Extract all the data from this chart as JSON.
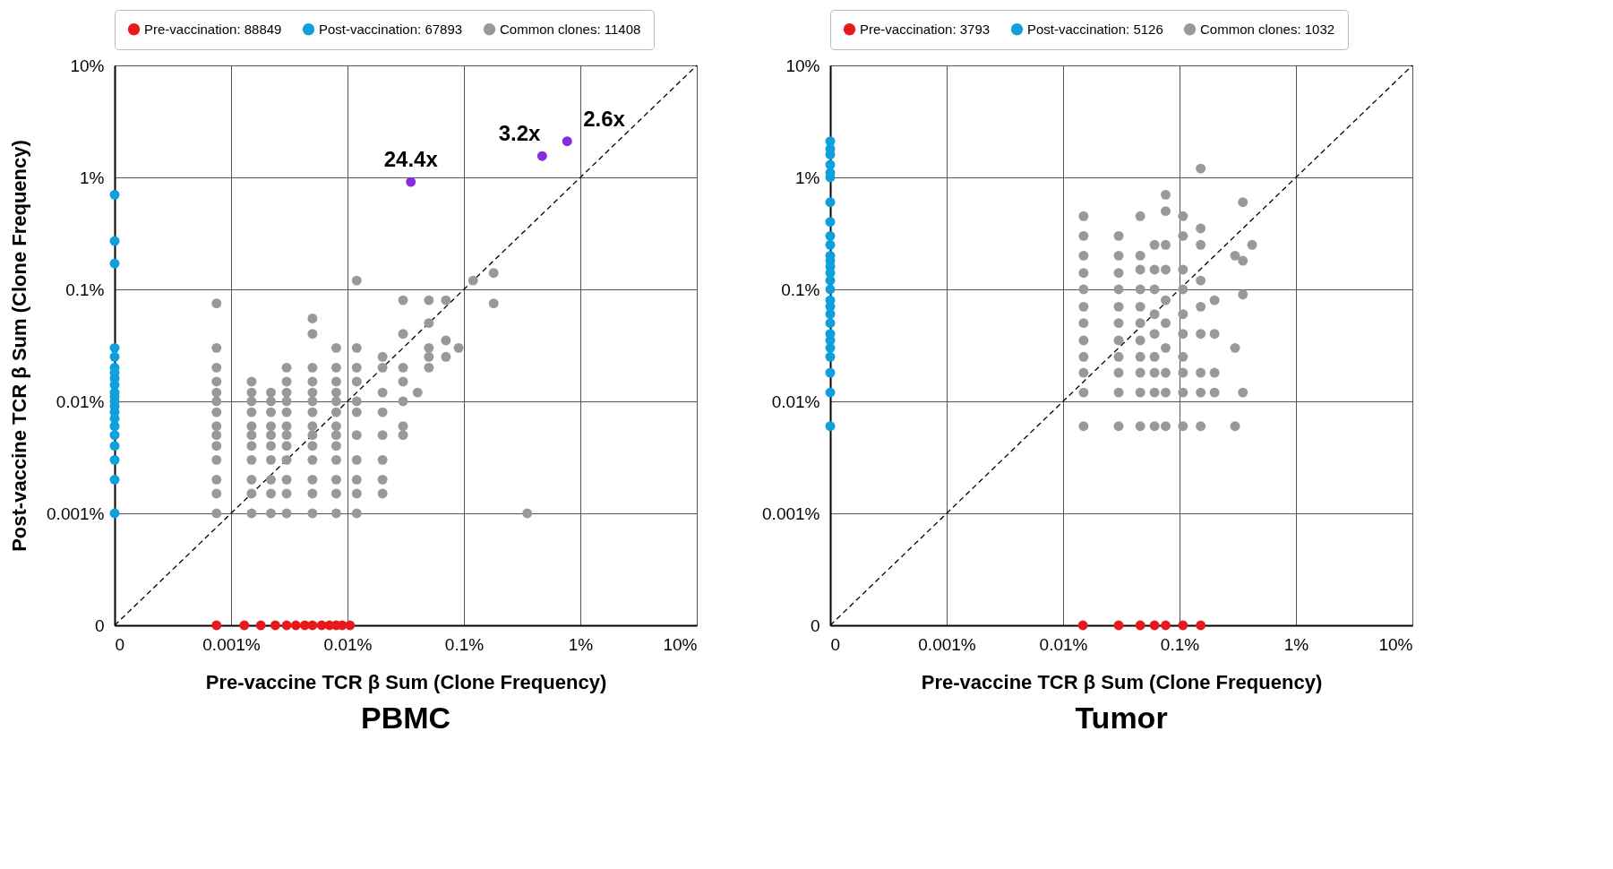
{
  "chart_data": [
    {
      "type": "scatter",
      "title": "PBMC",
      "xlabel": "Pre-vaccine TCR β Sum (Clone Frequency)",
      "ylabel": "Post-vaccine TCR β Sum (Clone Frequency)",
      "xlim": [
        0.0001,
        10
      ],
      "ylim": [
        0.0001,
        10
      ],
      "xticks": [
        {
          "value": 0.0001,
          "label": "0"
        },
        {
          "value": 0.001,
          "label": "0.001%"
        },
        {
          "value": 0.01,
          "label": "0.01%"
        },
        {
          "value": 0.1,
          "label": "0.1%"
        },
        {
          "value": 1,
          "label": "1%"
        },
        {
          "value": 10,
          "label": "10%"
        }
      ],
      "yticks": [
        {
          "value": 0.0001,
          "label": "0"
        },
        {
          "value": 0.001,
          "label": "0.001%"
        },
        {
          "value": 0.01,
          "label": "0.01%"
        },
        {
          "value": 0.1,
          "label": "0.1%"
        },
        {
          "value": 1,
          "label": "1%"
        },
        {
          "value": 10,
          "label": "10%"
        }
      ],
      "log": "xy",
      "grid": true,
      "legend": "top",
      "marker": "circle",
      "series": [
        {
          "type": "line",
          "color": "#000000",
          "line_style": "dashed",
          "marker": "none",
          "x": [
            0.0001,
            10
          ],
          "values": [
            0.0001,
            10
          ]
        },
        {
          "name": "Pre-vaccination: 88849",
          "color": "#e8191c",
          "x": [
            0.00075,
            0.0013,
            0.0018,
            0.0024,
            0.003,
            0.0036,
            0.0043,
            0.005,
            0.006,
            0.007,
            0.008,
            0.009,
            0.0105
          ],
          "values": [
            0.0001,
            0.0001,
            0.0001,
            0.0001,
            0.0001,
            0.0001,
            0.0001,
            0.0001,
            0.0001,
            0.0001,
            0.0001,
            0.0001,
            0.0001
          ]
        },
        {
          "name": "Post-vaccination: 67893",
          "color": "#0fa0dc",
          "x": [
            0.0001,
            0.0001,
            0.0001,
            0.0001,
            0.0001,
            0.0001,
            0.0001,
            0.0001,
            0.0001,
            0.0001,
            0.0001,
            0.0001,
            0.0001,
            0.0001,
            0.0001,
            0.0001,
            0.0001,
            0.0001,
            0.0001,
            0.0001,
            0.0001
          ],
          "values": [
            0.7,
            0.27,
            0.17,
            0.03,
            0.025,
            0.02,
            0.018,
            0.016,
            0.014,
            0.012,
            0.011,
            0.01,
            0.009,
            0.008,
            0.007,
            0.006,
            0.005,
            0.004,
            0.003,
            0.002,
            0.001
          ]
        },
        {
          "name": "Common clones: 11408",
          "color": "#999999",
          "x": [
            0.00075,
            0.00075,
            0.00075,
            0.00075,
            0.00075,
            0.00075,
            0.00075,
            0.00075,
            0.00075,
            0.00075,
            0.00075,
            0.00075,
            0.00075,
            0.00075,
            0.0015,
            0.0015,
            0.0015,
            0.0015,
            0.0015,
            0.0015,
            0.0015,
            0.0015,
            0.0015,
            0.0015,
            0.0015,
            0.0022,
            0.0022,
            0.0022,
            0.0022,
            0.0022,
            0.0022,
            0.0022,
            0.0022,
            0.0022,
            0.0022,
            0.003,
            0.003,
            0.003,
            0.003,
            0.003,
            0.003,
            0.003,
            0.003,
            0.003,
            0.003,
            0.003,
            0.003,
            0.005,
            0.005,
            0.005,
            0.005,
            0.005,
            0.005,
            0.005,
            0.005,
            0.005,
            0.005,
            0.005,
            0.005,
            0.005,
            0.005,
            0.008,
            0.008,
            0.008,
            0.008,
            0.008,
            0.008,
            0.008,
            0.008,
            0.008,
            0.008,
            0.008,
            0.008,
            0.008,
            0.012,
            0.012,
            0.012,
            0.012,
            0.012,
            0.012,
            0.012,
            0.012,
            0.012,
            0.012,
            0.012,
            0.02,
            0.02,
            0.02,
            0.02,
            0.02,
            0.02,
            0.02,
            0.02,
            0.03,
            0.03,
            0.03,
            0.03,
            0.03,
            0.03,
            0.03,
            0.04,
            0.05,
            0.05,
            0.05,
            0.05,
            0.05,
            0.07,
            0.07,
            0.07,
            0.09,
            0.12,
            0.18,
            0.18,
            0.35
          ],
          "values": [
            0.001,
            0.0015,
            0.002,
            0.003,
            0.004,
            0.005,
            0.006,
            0.008,
            0.01,
            0.012,
            0.015,
            0.02,
            0.03,
            0.075,
            0.001,
            0.0015,
            0.002,
            0.003,
            0.004,
            0.005,
            0.006,
            0.008,
            0.01,
            0.012,
            0.015,
            0.001,
            0.0015,
            0.002,
            0.003,
            0.004,
            0.005,
            0.006,
            0.008,
            0.01,
            0.012,
            0.001,
            0.0015,
            0.002,
            0.003,
            0.004,
            0.005,
            0.006,
            0.008,
            0.01,
            0.012,
            0.015,
            0.02,
            0.001,
            0.0015,
            0.002,
            0.003,
            0.004,
            0.005,
            0.006,
            0.008,
            0.01,
            0.012,
            0.015,
            0.02,
            0.04,
            0.055,
            0.001,
            0.0015,
            0.002,
            0.003,
            0.004,
            0.005,
            0.006,
            0.008,
            0.01,
            0.012,
            0.015,
            0.02,
            0.03,
            0.001,
            0.0015,
            0.002,
            0.003,
            0.005,
            0.008,
            0.01,
            0.015,
            0.02,
            0.03,
            0.12,
            0.0015,
            0.002,
            0.003,
            0.005,
            0.008,
            0.012,
            0.02,
            0.025,
            0.005,
            0.006,
            0.01,
            0.015,
            0.02,
            0.04,
            0.08,
            0.012,
            0.02,
            0.025,
            0.03,
            0.05,
            0.08,
            0.025,
            0.035,
            0.08,
            0.03,
            0.12,
            0.14,
            0.075,
            0.001
          ]
        },
        {
          "color": "#8a2be2",
          "x": [
            0.035,
            0.47,
            0.77
          ],
          "values": [
            0.91,
            1.55,
            2.1
          ]
        }
      ],
      "annotations": [
        {
          "text": "24.4x",
          "x": 0.035,
          "y": 0.91
        },
        {
          "text": "3.2x",
          "x": 0.47,
          "y": 1.55
        },
        {
          "text": "2.6x",
          "x": 0.77,
          "y": 2.1
        }
      ]
    },
    {
      "type": "scatter",
      "title": "Tumor",
      "xlabel": "Pre-vaccine TCR β Sum (Clone Frequency)",
      "xlim": [
        0.0001,
        10
      ],
      "ylim": [
        0.0001,
        10
      ],
      "xticks": [
        {
          "value": 0.0001,
          "label": "0"
        },
        {
          "value": 0.001,
          "label": "0.001%"
        },
        {
          "value": 0.01,
          "label": "0.01%"
        },
        {
          "value": 0.1,
          "label": "0.1%"
        },
        {
          "value": 1,
          "label": "1%"
        },
        {
          "value": 10,
          "label": "10%"
        }
      ],
      "yticks": [
        {
          "value": 0.0001,
          "label": "0"
        },
        {
          "value": 0.001,
          "label": "0.001%"
        },
        {
          "value": 0.01,
          "label": "0.01%"
        },
        {
          "value": 0.1,
          "label": "0.1%"
        },
        {
          "value": 1,
          "label": "1%"
        },
        {
          "value": 10,
          "label": "10%"
        }
      ],
      "log": "xy",
      "grid": true,
      "legend": "top",
      "marker": "circle",
      "series": [
        {
          "type": "line",
          "color": "#000000",
          "line_style": "dashed",
          "marker": "none",
          "x": [
            0.0001,
            10
          ],
          "values": [
            0.0001,
            10
          ]
        },
        {
          "name": "Pre-vaccination: 3793",
          "color": "#e8191c",
          "x": [
            0.0148,
            0.03,
            0.046,
            0.061,
            0.076,
            0.107,
            0.152
          ],
          "values": [
            0.0001,
            0.0001,
            0.0001,
            0.0001,
            0.0001,
            0.0001,
            0.0001
          ]
        },
        {
          "name": "Post-vaccination: 5126",
          "color": "#0fa0dc",
          "x": [
            0.0001,
            0.0001,
            0.0001,
            0.0001,
            0.0001,
            0.0001,
            0.0001,
            0.0001,
            0.0001,
            0.0001,
            0.0001,
            0.0001,
            0.0001,
            0.0001,
            0.0001,
            0.0001,
            0.0001,
            0.0001,
            0.0001,
            0.0001,
            0.0001,
            0.0001,
            0.0001,
            0.0001,
            0.0001,
            0.0001,
            0.0001
          ],
          "values": [
            0.006,
            0.012,
            0.018,
            0.025,
            0.03,
            0.035,
            0.04,
            0.05,
            0.06,
            0.07,
            0.08,
            0.1,
            0.12,
            0.14,
            0.16,
            0.18,
            0.2,
            0.25,
            0.3,
            0.4,
            0.6,
            1.0,
            1.1,
            1.3,
            1.6,
            1.8,
            2.1
          ]
        },
        {
          "name": "Common clones: 1032",
          "color": "#999999",
          "x": [
            0.015,
            0.015,
            0.015,
            0.015,
            0.015,
            0.015,
            0.015,
            0.015,
            0.015,
            0.015,
            0.015,
            0.015,
            0.03,
            0.03,
            0.03,
            0.03,
            0.03,
            0.03,
            0.03,
            0.03,
            0.03,
            0.03,
            0.03,
            0.046,
            0.046,
            0.046,
            0.046,
            0.046,
            0.046,
            0.046,
            0.046,
            0.046,
            0.046,
            0.046,
            0.061,
            0.061,
            0.061,
            0.061,
            0.061,
            0.061,
            0.061,
            0.061,
            0.061,
            0.076,
            0.076,
            0.076,
            0.076,
            0.076,
            0.076,
            0.076,
            0.076,
            0.076,
            0.076,
            0.107,
            0.107,
            0.107,
            0.107,
            0.107,
            0.107,
            0.107,
            0.107,
            0.107,
            0.107,
            0.152,
            0.152,
            0.152,
            0.152,
            0.152,
            0.152,
            0.152,
            0.152,
            0.152,
            0.2,
            0.2,
            0.2,
            0.2,
            0.3,
            0.3,
            0.3,
            0.35,
            0.35,
            0.35,
            0.35,
            0.42
          ],
          "values": [
            0.006,
            0.012,
            0.018,
            0.025,
            0.035,
            0.05,
            0.07,
            0.1,
            0.14,
            0.2,
            0.3,
            0.45,
            0.006,
            0.012,
            0.018,
            0.025,
            0.035,
            0.05,
            0.07,
            0.1,
            0.14,
            0.2,
            0.3,
            0.006,
            0.012,
            0.018,
            0.025,
            0.035,
            0.05,
            0.07,
            0.1,
            0.15,
            0.2,
            0.45,
            0.006,
            0.012,
            0.018,
            0.025,
            0.04,
            0.06,
            0.1,
            0.15,
            0.25,
            0.006,
            0.012,
            0.018,
            0.03,
            0.05,
            0.08,
            0.15,
            0.25,
            0.5,
            0.7,
            0.006,
            0.012,
            0.018,
            0.025,
            0.04,
            0.06,
            0.1,
            0.15,
            0.3,
            0.45,
            0.006,
            0.012,
            0.018,
            0.04,
            0.07,
            0.12,
            0.25,
            0.35,
            1.2,
            0.012,
            0.018,
            0.04,
            0.08,
            0.006,
            0.03,
            0.2,
            0.012,
            0.09,
            0.18,
            0.6,
            0.25
          ]
        }
      ]
    }
  ]
}
